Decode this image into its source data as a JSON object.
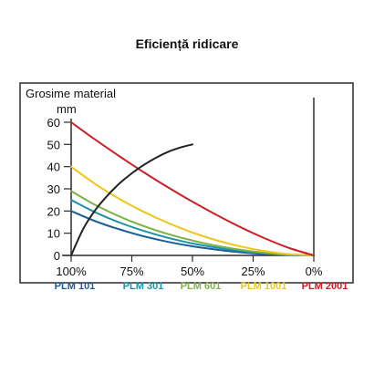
{
  "chart_data": {
    "type": "line",
    "title": "Eficiență ridicare",
    "ylabel": "Grosime material",
    "yunit": "mm",
    "ylim": [
      0,
      60
    ],
    "yticks": [
      0,
      10,
      20,
      30,
      40,
      50,
      60
    ],
    "xlim": [
      0,
      100
    ],
    "xtick_values": [
      0,
      25,
      50,
      75,
      100
    ],
    "xtick_labels": [
      "100%",
      "75%",
      "50%",
      "25%",
      "0%"
    ],
    "grid": false,
    "legend_position": "bottom",
    "series": [
      {
        "name": "PLM 101",
        "color": "#1b5e99",
        "x": [
          0,
          10,
          20,
          30,
          40,
          50,
          60,
          70,
          80,
          90,
          100
        ],
        "values": [
          20,
          15.4,
          11.7,
          8.6,
          6.1,
          4.1,
          2.6,
          1.4,
          0.6,
          0.2,
          0
        ]
      },
      {
        "name": "PLM 301",
        "color": "#1a93a8",
        "x": [
          0,
          10,
          20,
          30,
          40,
          50,
          60,
          70,
          80,
          90,
          100
        ],
        "values": [
          25,
          19.4,
          14.8,
          11.0,
          7.9,
          5.4,
          3.5,
          2.0,
          0.9,
          0.2,
          0
        ]
      },
      {
        "name": "PLM 601",
        "color": "#7fb045",
        "x": [
          0,
          10,
          20,
          30,
          40,
          50,
          60,
          70,
          80,
          90,
          100
        ],
        "values": [
          29,
          22.7,
          17.5,
          13.2,
          9.6,
          6.7,
          4.3,
          2.5,
          1.1,
          0.3,
          0
        ]
      },
      {
        "name": "PLM 1001",
        "color": "#f0c419",
        "x": [
          0,
          10,
          20,
          30,
          40,
          50,
          60,
          70,
          80,
          90,
          100
        ],
        "values": [
          40,
          32.1,
          25.4,
          19.6,
          14.6,
          10.3,
          6.8,
          4.0,
          1.9,
          0.5,
          0
        ]
      },
      {
        "name": "PLM 2001",
        "color": "#cc2027",
        "x": [
          0,
          10,
          20,
          30,
          40,
          50,
          60,
          70,
          80,
          90,
          100
        ],
        "values": [
          60,
          52.1,
          44.6,
          37.4,
          30.6,
          24.2,
          18.2,
          12.6,
          7.6,
          3.3,
          0
        ]
      },
      {
        "color": "#222222",
        "x": [
          0,
          5,
          10,
          15,
          20,
          25,
          30,
          35,
          40,
          45,
          50
        ],
        "values": [
          0,
          12,
          20.5,
          27,
          32.5,
          37,
          40.8,
          44,
          46.7,
          48.6,
          50
        ]
      }
    ]
  }
}
